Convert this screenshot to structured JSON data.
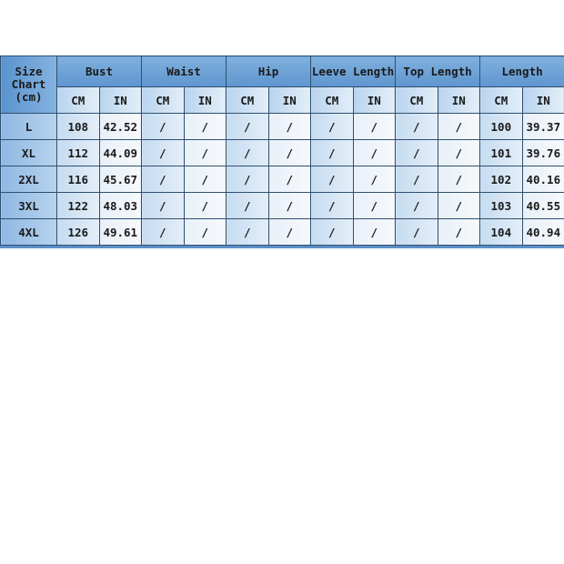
{
  "size_header": "Size Chart (cm)",
  "groups": [
    "Bust",
    "Waist",
    "Hip",
    "Leeve Length",
    "Top Length",
    "Length"
  ],
  "units": [
    "CM",
    "IN"
  ],
  "rows": [
    {
      "size": "L",
      "values": [
        "108",
        "42.52",
        "/",
        "/",
        "/",
        "/",
        "/",
        "/",
        "/",
        "/",
        "100",
        "39.37"
      ]
    },
    {
      "size": "XL",
      "values": [
        "112",
        "44.09",
        "/",
        "/",
        "/",
        "/",
        "/",
        "/",
        "/",
        "/",
        "101",
        "39.76"
      ]
    },
    {
      "size": "2XL",
      "values": [
        "116",
        "45.67",
        "/",
        "/",
        "/",
        "/",
        "/",
        "/",
        "/",
        "/",
        "102",
        "40.16"
      ]
    },
    {
      "size": "3XL",
      "values": [
        "122",
        "48.03",
        "/",
        "/",
        "/",
        "/",
        "/",
        "/",
        "/",
        "/",
        "103",
        "40.55"
      ]
    },
    {
      "size": "4XL",
      "values": [
        "126",
        "49.61",
        "/",
        "/",
        "/",
        "/",
        "/",
        "/",
        "/",
        "/",
        "104",
        "40.94"
      ]
    }
  ],
  "colors": {
    "header": "#6a9fd6",
    "border": "#2f4f6f"
  }
}
